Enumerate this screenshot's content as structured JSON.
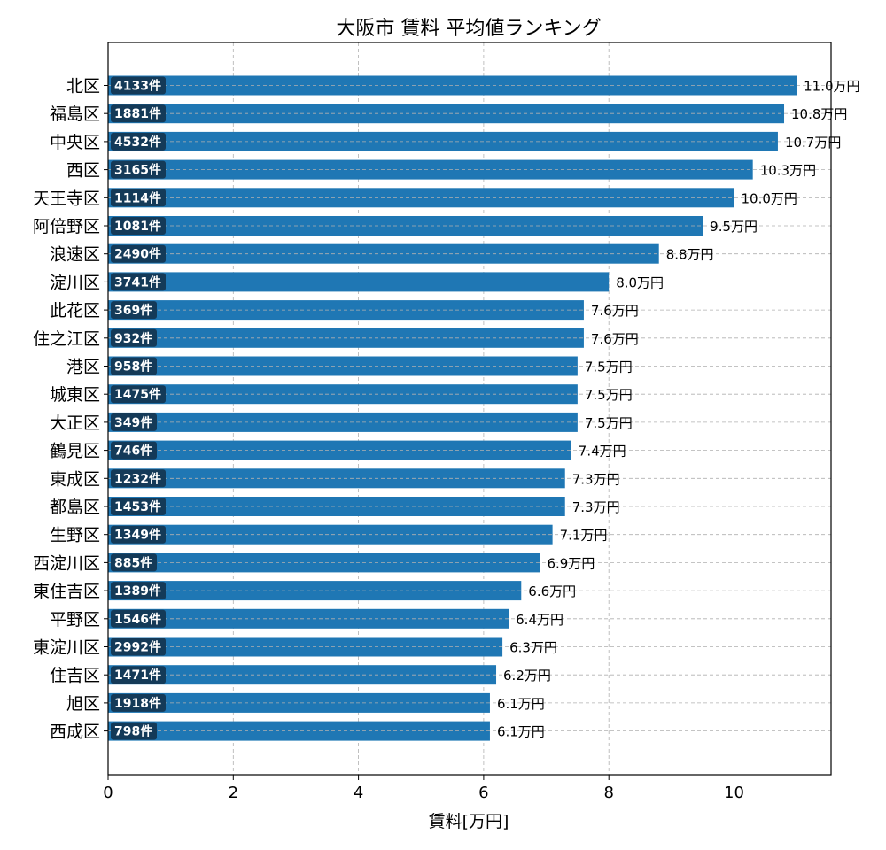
{
  "chart_data": {
    "type": "bar",
    "orientation": "horizontal",
    "title": "大阪市 賃料 平均値ランキング",
    "xlabel": "賃料[万円]",
    "ylabel": "",
    "xlim": [
      0,
      11.55
    ],
    "xticks": [
      0,
      2,
      4,
      6,
      8,
      10
    ],
    "xtick_labels": [
      "0",
      "2",
      "4",
      "6",
      "8",
      "10"
    ],
    "grid": true,
    "bar_color": "#1f77b4",
    "count_badge_color": "#143a58",
    "categories": [
      "北区",
      "福島区",
      "中央区",
      "西区",
      "天王寺区",
      "阿倍野区",
      "浪速区",
      "淀川区",
      "此花区",
      "住之江区",
      "港区",
      "城東区",
      "大正区",
      "鶴見区",
      "東成区",
      "都島区",
      "生野区",
      "西淀川区",
      "東住吉区",
      "平野区",
      "東淀川区",
      "住吉区",
      "旭区",
      "西成区"
    ],
    "values": [
      11.0,
      10.8,
      10.7,
      10.3,
      10.0,
      9.5,
      8.8,
      8.0,
      7.6,
      7.6,
      7.5,
      7.5,
      7.5,
      7.4,
      7.3,
      7.3,
      7.1,
      6.9,
      6.6,
      6.4,
      6.3,
      6.2,
      6.1,
      6.1
    ],
    "value_labels": [
      "11.0万円",
      "10.8万円",
      "10.7万円",
      "10.3万円",
      "10.0万円",
      "9.5万円",
      "8.8万円",
      "8.0万円",
      "7.6万円",
      "7.6万円",
      "7.5万円",
      "7.5万円",
      "7.5万円",
      "7.4万円",
      "7.3万円",
      "7.3万円",
      "7.1万円",
      "6.9万円",
      "6.6万円",
      "6.4万円",
      "6.3万円",
      "6.2万円",
      "6.1万円",
      "6.1万円"
    ],
    "count_labels": [
      "4133件",
      "1881件",
      "4532件",
      "3165件",
      "1114件",
      "1081件",
      "2490件",
      "3741件",
      "369件",
      "932件",
      "958件",
      "1475件",
      "349件",
      "746件",
      "1232件",
      "1453件",
      "1349件",
      "885件",
      "1389件",
      "1546件",
      "2992件",
      "1471件",
      "1918件",
      "798件"
    ]
  }
}
